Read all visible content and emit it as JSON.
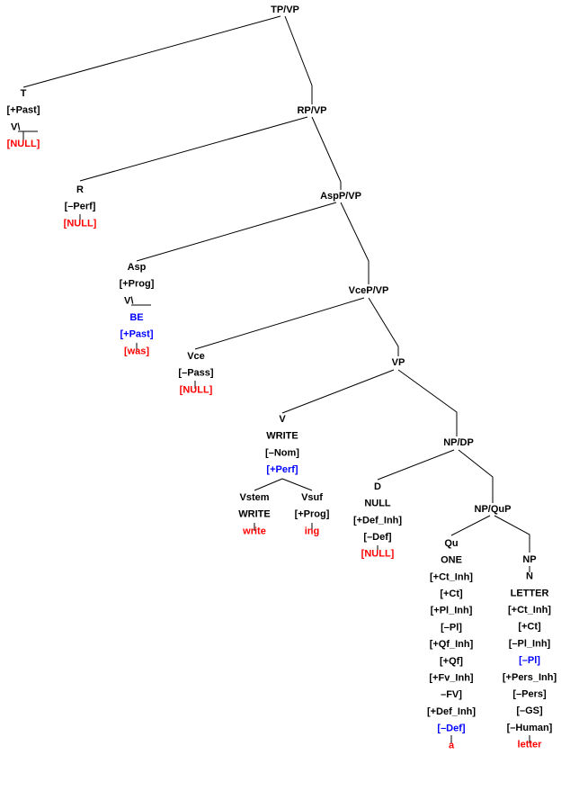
{
  "colors": {
    "black": "#000000",
    "red": "#ff0000",
    "blue": "#0000ff"
  },
  "nodes": {
    "tp": [
      {
        "text": "TP/VP",
        "c": "black"
      }
    ],
    "t": [
      {
        "text": "T",
        "c": "black"
      },
      {
        "text": "[+Past]",
        "c": "black"
      },
      {
        "text": "V\\",
        "c": "black",
        "trace": true
      },
      {
        "text": "[NULL]",
        "c": "red"
      }
    ],
    "rp": [
      {
        "text": "RP/VP",
        "c": "black"
      }
    ],
    "r": [
      {
        "text": "R",
        "c": "black"
      },
      {
        "text": "[–Perf]",
        "c": "black"
      },
      {
        "text": "[NULL]",
        "c": "red"
      }
    ],
    "aspp": [
      {
        "text": "AspP/VP",
        "c": "black"
      }
    ],
    "asp": [
      {
        "text": "Asp",
        "c": "black"
      },
      {
        "text": "[+Prog]",
        "c": "black"
      },
      {
        "text": "V\\",
        "c": "black",
        "trace": true
      },
      {
        "text": "BE",
        "c": "blue"
      },
      {
        "text": "[+Past]",
        "c": "blue"
      },
      {
        "text": "[was]",
        "c": "red"
      }
    ],
    "vcep": [
      {
        "text": "VceP/VP",
        "c": "black"
      }
    ],
    "vce": [
      {
        "text": "Vce",
        "c": "black"
      },
      {
        "text": "[–Pass]",
        "c": "black"
      },
      {
        "text": "[NULL]",
        "c": "red"
      }
    ],
    "vp": [
      {
        "text": "VP",
        "c": "black"
      }
    ],
    "v": [
      {
        "text": "V",
        "c": "black"
      },
      {
        "text": "WRITE",
        "c": "black"
      },
      {
        "text": "[–Nom]",
        "c": "black"
      },
      {
        "text": "[+Perf]",
        "c": "blue"
      }
    ],
    "vstem": [
      {
        "text": "Vstem",
        "c": "black"
      },
      {
        "text": "WRITE",
        "c": "black"
      },
      {
        "text": "write",
        "c": "red"
      }
    ],
    "vsuf": [
      {
        "text": "Vsuf",
        "c": "black"
      },
      {
        "text": "[+Prog]",
        "c": "black"
      },
      {
        "text": "ing",
        "c": "red"
      }
    ],
    "npdp": [
      {
        "text": "NP/DP",
        "c": "black"
      }
    ],
    "d": [
      {
        "text": "D",
        "c": "black"
      },
      {
        "text": "NULL",
        "c": "black"
      },
      {
        "text": "[+Def_Inh]",
        "c": "black"
      },
      {
        "text": "[–Def]",
        "c": "black"
      },
      {
        "text": "[NULL]",
        "c": "red"
      }
    ],
    "npqup": [
      {
        "text": "NP/QuP",
        "c": "black"
      }
    ],
    "qu": [
      {
        "text": "Qu",
        "c": "black"
      },
      {
        "text": "ONE",
        "c": "black"
      },
      {
        "text": "[+Ct_Inh]",
        "c": "black"
      },
      {
        "text": "[+Ct]",
        "c": "black"
      },
      {
        "text": "[+Pl_Inh]",
        "c": "black"
      },
      {
        "text": "[–Pl]",
        "c": "black"
      },
      {
        "text": "[+Qf_Inh]",
        "c": "black"
      },
      {
        "text": "[+Qf]",
        "c": "black"
      },
      {
        "text": "[+Fv_Inh]",
        "c": "black"
      },
      {
        "text": "–FV]",
        "c": "black"
      },
      {
        "text": "[+Def_Inh]",
        "c": "black"
      },
      {
        "text": "[–Def]",
        "c": "blue"
      },
      {
        "text": "a",
        "c": "red"
      }
    ],
    "np": [
      {
        "text": "NP",
        "c": "black"
      },
      {
        "text": "N",
        "c": "black"
      },
      {
        "text": "LETTER",
        "c": "black"
      },
      {
        "text": "[+Ct_Inh]",
        "c": "black"
      },
      {
        "text": "[+Ct]",
        "c": "black"
      },
      {
        "text": "[–Pl_Inh]",
        "c": "black"
      },
      {
        "text": "[–Pl]",
        "c": "blue"
      },
      {
        "text": "[+Pers_Inh]",
        "c": "black"
      },
      {
        "text": "[–Pers]",
        "c": "black"
      },
      {
        "text": "[–GS]",
        "c": "black"
      },
      {
        "text": "[–Human]",
        "c": "black"
      },
      {
        "text": "letter",
        "c": "red"
      }
    ]
  }
}
